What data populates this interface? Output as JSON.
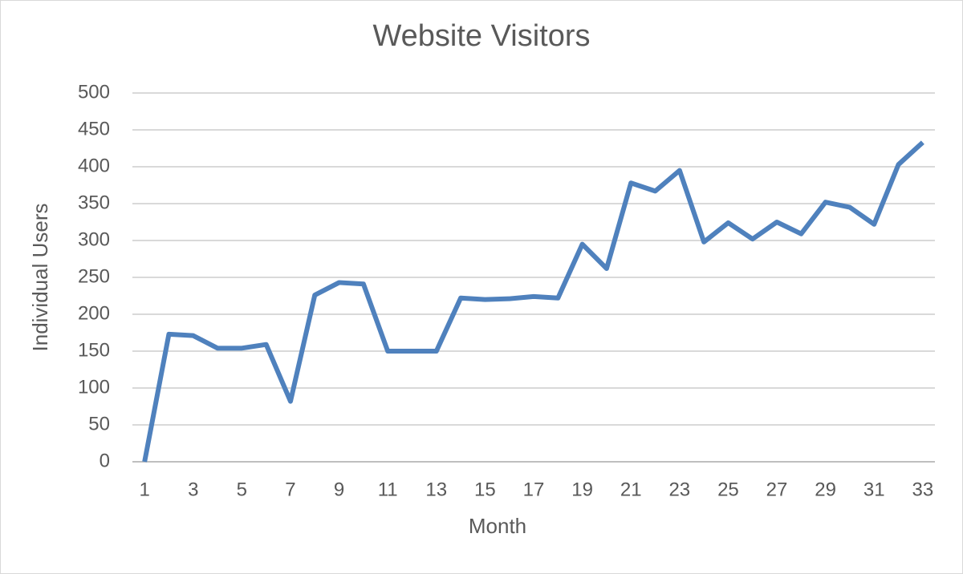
{
  "chart_data": {
    "type": "line",
    "title": "Website Visitors",
    "x_label": "Month",
    "y_label": "Individual Users",
    "x": [
      1,
      2,
      3,
      4,
      5,
      6,
      7,
      8,
      9,
      10,
      11,
      12,
      13,
      14,
      15,
      16,
      17,
      18,
      19,
      20,
      21,
      22,
      23,
      24,
      25,
      26,
      27,
      28,
      29,
      30,
      31,
      32,
      33
    ],
    "series": [
      {
        "name": "Individual Users",
        "color": "#4f81bd",
        "values": [
          0,
          173,
          171,
          154,
          154,
          159,
          82,
          226,
          243,
          241,
          150,
          150,
          150,
          222,
          220,
          221,
          224,
          222,
          295,
          262,
          378,
          367,
          395,
          298,
          324,
          302,
          325,
          309,
          352,
          345,
          322,
          403,
          433
        ]
      }
    ],
    "xlim": [
      0.5,
      33.5
    ],
    "xticks": [
      1,
      3,
      5,
      7,
      9,
      11,
      13,
      15,
      17,
      19,
      21,
      23,
      25,
      27,
      29,
      31,
      33
    ],
    "ylim": [
      0,
      500
    ],
    "yticks": [
      0,
      50,
      100,
      150,
      200,
      250,
      300,
      350,
      400,
      450,
      500
    ],
    "grid": true
  }
}
